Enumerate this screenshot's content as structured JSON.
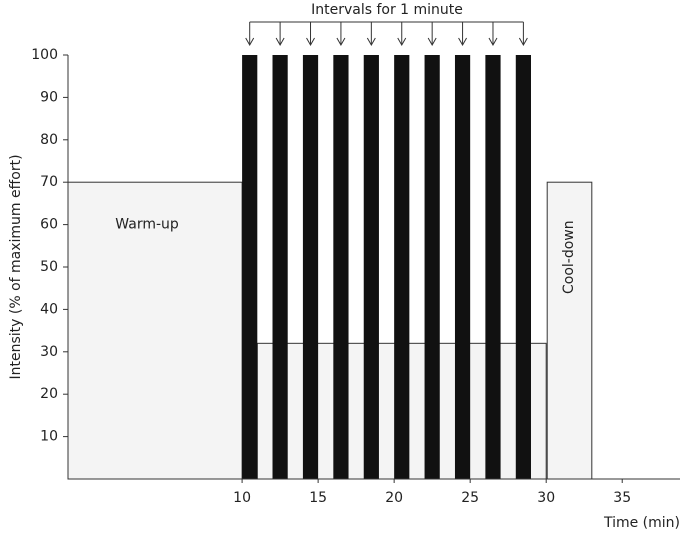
{
  "chart_data": {
    "type": "protocol",
    "annotation": "Intervals for 1 minute",
    "y_label": "Intensity (% of maximum effort)",
    "x_label": "Time (min)",
    "xlim": [
      -1.45,
      38.8
    ],
    "xticks": [
      10,
      15,
      20,
      25,
      30,
      35
    ],
    "ylim": [
      0,
      100
    ],
    "yticks": [
      10,
      20,
      30,
      40,
      50,
      60,
      70,
      80,
      90,
      100
    ],
    "warm_up": {
      "label": "Warm-up",
      "end": 10,
      "value": 70
    },
    "intervals": {
      "starts": [
        10,
        12,
        14,
        16,
        18,
        20,
        22,
        24,
        26,
        28
      ],
      "duration": 1,
      "value": 100,
      "color": "#111111"
    },
    "recovery": {
      "start": 11,
      "end": 30,
      "value": 32
    },
    "cool_down": {
      "label": "Cool-down",
      "start": 30,
      "end": 33,
      "value": 70
    }
  }
}
